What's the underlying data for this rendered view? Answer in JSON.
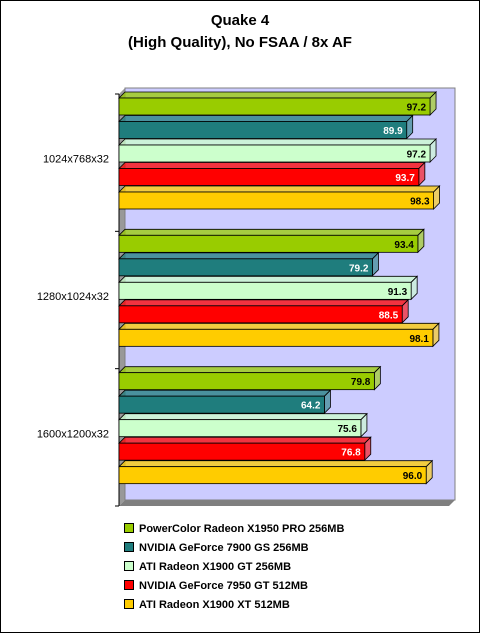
{
  "title_line1": "Quake 4",
  "title_line2": "(High Quality), No FSAA / 8x AF",
  "chart_data": {
    "type": "bar",
    "orientation": "horizontal",
    "categories": [
      "1024x768x32",
      "1280x1024x32",
      "1600x1200x32"
    ],
    "series": [
      {
        "name": "PowerColor Radeon X1950 PRO 256MB",
        "color": "#99cc00",
        "values": [
          97.2,
          93.4,
          79.8
        ]
      },
      {
        "name": "NVIDIA GeForce 7900 GS 256MB",
        "color": "#1f7d7d",
        "values": [
          89.9,
          79.2,
          64.2
        ]
      },
      {
        "name": "ATI Radeon X1900 GT 256MB",
        "color": "#ccffcc",
        "values": [
          97.2,
          91.3,
          75.6
        ]
      },
      {
        "name": "NVIDIA GeForce 7950 GT 512MB",
        "color": "#ff0000",
        "values": [
          93.7,
          88.5,
          76.8
        ]
      },
      {
        "name": "ATI Radeon X1900 XT 512MB",
        "color": "#ffcc00",
        "values": [
          98.3,
          98.1,
          96.0
        ]
      }
    ],
    "xlim": [
      0,
      100
    ],
    "grid": false,
    "legend_position": "bottom",
    "plot_background": "#ccccff"
  }
}
